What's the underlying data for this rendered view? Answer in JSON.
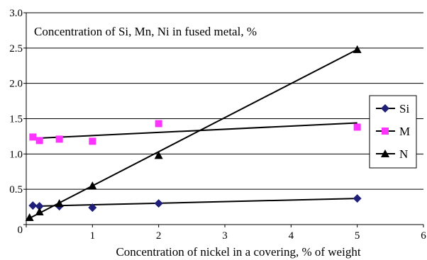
{
  "chart_data": {
    "type": "scatter",
    "title": "Concentration of Si, Mn, Ni in fused metal, %",
    "xlabel": "Concentration of nickel in a covering, % of weight",
    "ylabel": "",
    "xlim": [
      0,
      6
    ],
    "ylim": [
      0,
      3.0
    ],
    "x_ticks": [
      "0",
      "1",
      "2",
      "3",
      "4",
      "5",
      "6"
    ],
    "y_ticks": [
      "0",
      "0.5",
      "1.0",
      "1.5",
      "2.0",
      "2.5",
      "3.0"
    ],
    "grid": "horizontal",
    "legend_position": "right",
    "series": [
      {
        "name": "Si",
        "color": "#1f1f7a",
        "marker": "diamond",
        "points": [
          [
            0.1,
            0.27
          ],
          [
            0.2,
            0.26
          ],
          [
            0.5,
            0.26
          ],
          [
            1.0,
            0.24
          ],
          [
            2.0,
            0.3
          ],
          [
            5.0,
            0.37
          ]
        ],
        "trend": [
          [
            0.1,
            0.26
          ],
          [
            5.0,
            0.37
          ]
        ]
      },
      {
        "name": "M",
        "color": "#ff33ff",
        "marker": "square",
        "points": [
          [
            0.1,
            1.24
          ],
          [
            0.2,
            1.19
          ],
          [
            0.5,
            1.21
          ],
          [
            1.0,
            1.18
          ],
          [
            2.0,
            1.43
          ],
          [
            5.0,
            1.38
          ]
        ],
        "trend": [
          [
            0.1,
            1.22
          ],
          [
            5.0,
            1.44
          ]
        ]
      },
      {
        "name": "N",
        "color": "#000000",
        "marker": "triangle",
        "points": [
          [
            0.05,
            0.1
          ],
          [
            0.2,
            0.18
          ],
          [
            0.5,
            0.3
          ],
          [
            1.0,
            0.55
          ],
          [
            2.0,
            0.98
          ],
          [
            5.0,
            2.48
          ]
        ],
        "trend": [
          [
            0.05,
            0.09
          ],
          [
            5.0,
            2.48
          ]
        ]
      }
    ]
  }
}
